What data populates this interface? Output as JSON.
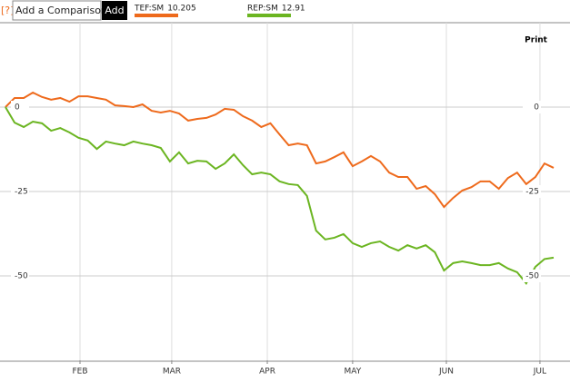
{
  "ui": {
    "help": "[?]",
    "input_placeholder": "Add a Comparison",
    "add_button": "Add",
    "print": "Print"
  },
  "chart_data": {
    "type": "line",
    "xlim": [
      0,
      60
    ],
    "xticks": [
      {
        "value": 8.16,
        "label": "FEB"
      },
      {
        "value": 18.2,
        "label": "MAR"
      },
      {
        "value": 28.66,
        "label": "APR"
      },
      {
        "value": 38.0,
        "label": "MAY"
      },
      {
        "value": 48.26,
        "label": "JUN"
      },
      {
        "value": 58.5,
        "label": "JUL"
      }
    ],
    "ylim": [
      -75,
      25
    ],
    "yticks": [
      0,
      -25,
      -50
    ],
    "grid": true,
    "series": [
      {
        "name": "TEF:SM",
        "last": 10.205,
        "color": "#ee6a1c",
        "values": [
          0,
          2.7,
          2.7,
          4.3,
          3,
          2.2,
          2.7,
          1.6,
          3.2,
          3.2,
          2.7,
          2.2,
          0.5,
          0.3,
          0,
          0.8,
          -1.1,
          -1.6,
          -1.1,
          -1.9,
          -4,
          -3.5,
          -3.2,
          -2.2,
          -0.5,
          -0.8,
          -2.7,
          -4,
          -5.9,
          -4.8,
          -8.1,
          -11.3,
          -10.8,
          -11.3,
          -16.7,
          -16.1,
          -14.8,
          -13.4,
          -17.5,
          -16.1,
          -14.5,
          -16.1,
          -19.4,
          -20.7,
          -20.7,
          -24.2,
          -23.4,
          -25.8,
          -29.6,
          -26.9,
          -24.7,
          -23.7,
          -22,
          -22,
          -24.2,
          -21,
          -19.4,
          -22.8,
          -20.7,
          -16.7,
          -18
        ]
      },
      {
        "name": "REP:SM",
        "last": 12.91,
        "color": "#6bb521",
        "values": [
          0,
          -4.6,
          -5.9,
          -4.3,
          -4.8,
          -7,
          -6.2,
          -7.5,
          -9.1,
          -9.9,
          -12.4,
          -10.2,
          -10.8,
          -11.3,
          -10.2,
          -10.8,
          -11.3,
          -12.1,
          -16.1,
          -13.4,
          -16.7,
          -15.9,
          -16.1,
          -18.3,
          -16.7,
          -14,
          -17.2,
          -19.9,
          -19.4,
          -19.9,
          -22,
          -22.8,
          -23.1,
          -26.3,
          -36.6,
          -39.2,
          -38.7,
          -37.6,
          -40.3,
          -41.4,
          -40.3,
          -39.8,
          -41.4,
          -42.5,
          -40.9,
          -41.9,
          -40.9,
          -43,
          -48.4,
          -46.2,
          -45.7,
          -46.2,
          -46.8,
          -46.8,
          -46.2,
          -47.8,
          -48.9,
          -52.2,
          -47.3,
          -45,
          -44.6
        ]
      }
    ]
  }
}
